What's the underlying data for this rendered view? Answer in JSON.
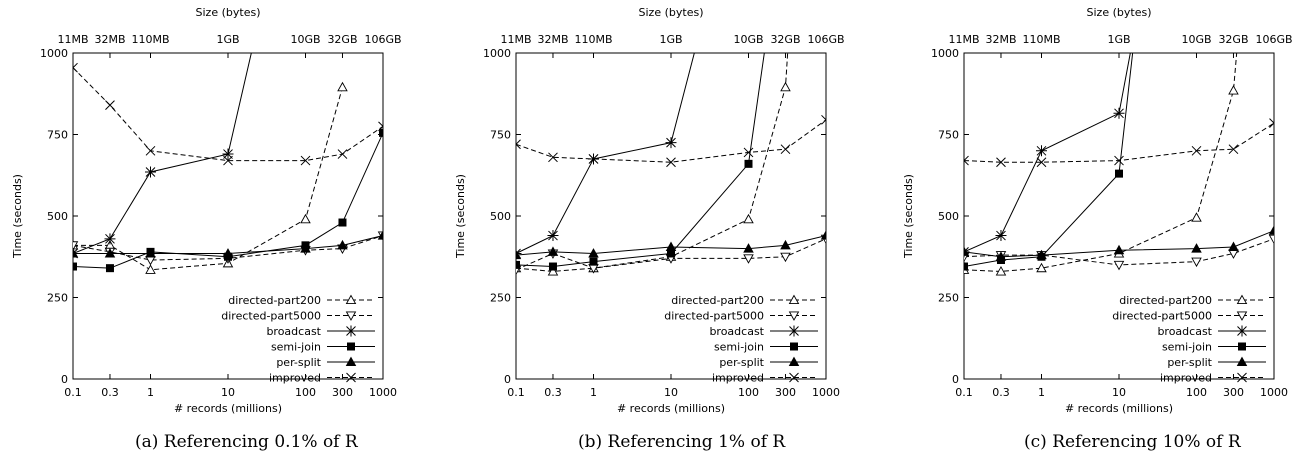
{
  "chart_data": [
    {
      "type": "line",
      "caption": "(a) Referencing 0.1% of R",
      "top_axis_label": "Size (bytes)",
      "top_tick_labels": [
        "11MB",
        "32MB",
        "110MB",
        "1GB",
        "10GB",
        "32GB",
        "106GB"
      ],
      "xlabel": "# records (millions)",
      "ylabel": "Time (seconds)",
      "x_scale": "log",
      "x_ticks": [
        0.1,
        0.3,
        1,
        10,
        100,
        300,
        1000
      ],
      "ylim": [
        0,
        1000
      ],
      "y_ticks": [
        0,
        250,
        500,
        750,
        1000
      ],
      "legend_position": "bottom-right",
      "series": [
        {
          "name": "directed-part200",
          "x": [
            0.1,
            0.3,
            1,
            10,
            100,
            300
          ],
          "values": [
            410,
            410,
            335,
            355,
            490,
            895
          ],
          "dash": true,
          "marker": "triangle-up-open",
          "extends_above": false
        },
        {
          "name": "directed-part5000",
          "x": [
            0.1,
            0.3,
            1,
            10,
            100,
            300,
            1000
          ],
          "values": [
            410,
            390,
            365,
            370,
            395,
            400,
            440
          ],
          "dash": true,
          "marker": "triangle-down-open",
          "extends_above": false
        },
        {
          "name": "broadcast",
          "x": [
            0.1,
            0.3,
            1,
            10,
            20
          ],
          "values": [
            385,
            430,
            635,
            690,
            1000
          ],
          "dash": false,
          "marker": "star",
          "extends_above": true
        },
        {
          "name": "semi-join",
          "x": [
            0.1,
            0.3,
            1,
            10,
            100,
            300,
            1000
          ],
          "values": [
            345,
            340,
            390,
            375,
            410,
            480,
            755
          ],
          "dash": false,
          "marker": "square",
          "extends_above": false
        },
        {
          "name": "per-split",
          "x": [
            0.1,
            0.3,
            1,
            10,
            100,
            300,
            1000
          ],
          "values": [
            385,
            385,
            385,
            385,
            400,
            410,
            440
          ],
          "dash": false,
          "marker": "triangle-up-filled",
          "extends_above": false
        },
        {
          "name": "improved",
          "x": [
            0.1,
            0.3,
            1,
            10,
            100,
            300,
            1000
          ],
          "values": [
            955,
            840,
            700,
            670,
            670,
            690,
            775
          ],
          "dash": true,
          "marker": "x",
          "extends_above": false
        }
      ]
    },
    {
      "type": "line",
      "caption": "(b) Referencing 1% of R",
      "top_axis_label": "Size (bytes)",
      "top_tick_labels": [
        "11MB",
        "32MB",
        "110MB",
        "1GB",
        "10GB",
        "32GB",
        "106GB"
      ],
      "xlabel": "# records (millions)",
      "ylabel": "Time (seconds)",
      "x_scale": "log",
      "x_ticks": [
        0.1,
        0.3,
        1,
        10,
        100,
        300,
        1000
      ],
      "ylim": [
        0,
        1000
      ],
      "y_ticks": [
        0,
        250,
        500,
        750,
        1000
      ],
      "legend_position": "bottom-right",
      "series": [
        {
          "name": "directed-part200",
          "x": [
            0.1,
            0.3,
            1,
            10,
            100,
            300,
            320
          ],
          "values": [
            340,
            330,
            340,
            375,
            490,
            895,
            1000
          ],
          "dash": true,
          "marker": "triangle-up-open",
          "extends_above": true
        },
        {
          "name": "directed-part5000",
          "x": [
            0.1,
            0.3,
            1,
            10,
            100,
            300,
            1000
          ],
          "values": [
            335,
            385,
            340,
            370,
            370,
            375,
            430
          ],
          "dash": true,
          "marker": "triangle-down-open",
          "extends_above": false
        },
        {
          "name": "broadcast",
          "x": [
            0.1,
            0.3,
            1,
            10,
            20
          ],
          "values": [
            385,
            440,
            675,
            725,
            1000
          ],
          "dash": false,
          "marker": "star",
          "extends_above": true
        },
        {
          "name": "semi-join",
          "x": [
            0.1,
            0.3,
            1,
            10,
            100,
            160
          ],
          "values": [
            350,
            345,
            360,
            385,
            660,
            1000
          ],
          "dash": false,
          "marker": "square",
          "extends_above": true
        },
        {
          "name": "per-split",
          "x": [
            0.1,
            0.3,
            1,
            10,
            100,
            300,
            1000
          ],
          "values": [
            380,
            390,
            385,
            405,
            400,
            410,
            440
          ],
          "dash": false,
          "marker": "triangle-up-filled",
          "extends_above": false
        },
        {
          "name": "improved",
          "x": [
            0.1,
            0.3,
            1,
            10,
            100,
            300,
            1000
          ],
          "values": [
            720,
            680,
            675,
            665,
            695,
            705,
            795
          ],
          "dash": true,
          "marker": "x",
          "extends_above": false
        }
      ]
    },
    {
      "type": "line",
      "caption": "(c) Referencing 10% of R",
      "top_axis_label": "Size (bytes)",
      "top_tick_labels": [
        "11MB",
        "32MB",
        "110MB",
        "1GB",
        "10GB",
        "32GB",
        "106GB"
      ],
      "xlabel": "# records (millions)",
      "ylabel": "Time (seconds)",
      "x_scale": "log",
      "x_ticks": [
        0.1,
        0.3,
        1,
        10,
        100,
        300,
        1000
      ],
      "ylim": [
        0,
        1000
      ],
      "y_ticks": [
        0,
        250,
        500,
        750,
        1000
      ],
      "legend_position": "bottom-right",
      "series": [
        {
          "name": "directed-part200",
          "x": [
            0.1,
            0.3,
            1,
            10,
            100,
            300,
            330
          ],
          "values": [
            335,
            330,
            340,
            385,
            495,
            885,
            1000
          ],
          "dash": true,
          "marker": "triangle-up-open",
          "extends_above": true
        },
        {
          "name": "directed-part5000",
          "x": [
            0.1,
            0.3,
            1,
            10,
            100,
            300,
            1000
          ],
          "values": [
            375,
            380,
            380,
            350,
            360,
            385,
            430
          ],
          "dash": true,
          "marker": "triangle-down-open",
          "extends_above": false
        },
        {
          "name": "broadcast",
          "x": [
            0.1,
            0.3,
            1,
            10,
            14
          ],
          "values": [
            390,
            440,
            700,
            815,
            1000
          ],
          "dash": false,
          "marker": "star",
          "extends_above": true
        },
        {
          "name": "semi-join",
          "x": [
            0.1,
            0.3,
            1,
            10,
            15
          ],
          "values": [
            345,
            365,
            375,
            630,
            1000
          ],
          "dash": false,
          "marker": "square",
          "extends_above": true
        },
        {
          "name": "per-split",
          "x": [
            0.1,
            0.3,
            1,
            10,
            100,
            300,
            1000
          ],
          "values": [
            390,
            375,
            380,
            395,
            400,
            405,
            455
          ],
          "dash": false,
          "marker": "triangle-up-filled",
          "extends_above": false
        },
        {
          "name": "improved",
          "x": [
            0.1,
            0.3,
            1,
            10,
            100,
            300,
            1000
          ],
          "values": [
            670,
            665,
            665,
            670,
            700,
            705,
            785
          ],
          "dash": true,
          "marker": "x",
          "extends_above": false
        }
      ]
    }
  ]
}
